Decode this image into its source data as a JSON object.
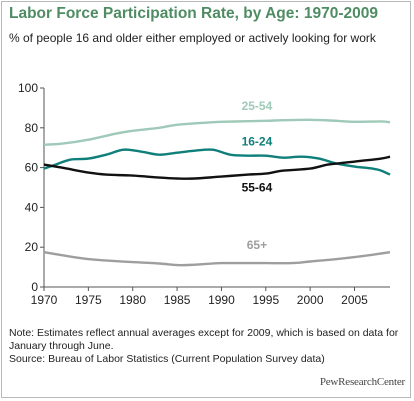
{
  "header": {
    "title": "Labor Force Participation Rate, by Age: 1970-2009",
    "subtitle": "% of people 16 and older either employed or actively looking for work"
  },
  "footer": {
    "note": "Note: Estimates reflect annual averages except for 2009, which is based on data for January through June.",
    "source": "Source: Bureau of Labor Statistics (Current Population Survey data)",
    "logo_text": "PewResearchCenter"
  },
  "chart_data": {
    "type": "line",
    "ylim": [
      0,
      100
    ],
    "xlim": [
      1970,
      2009
    ],
    "yticks": [
      0,
      20,
      40,
      60,
      80,
      100
    ],
    "xticks": [
      1970,
      1975,
      1980,
      1985,
      1990,
      1995,
      2000,
      2005
    ],
    "grid": false,
    "series": [
      {
        "name": "25-54",
        "color": "#9fc9b8",
        "x": [
          1970,
          1972,
          1975,
          1978,
          1980,
          1983,
          1985,
          1988,
          1990,
          1993,
          1995,
          1997,
          2000,
          2003,
          2005,
          2008,
          2009
        ],
        "y": [
          71.5,
          72,
          74,
          77,
          78.5,
          80,
          81.5,
          82.5,
          83,
          83.3,
          83.5,
          83.8,
          84,
          83.5,
          83,
          83.2,
          82.8
        ]
      },
      {
        "name": "16-24",
        "color": "#0f7f7a",
        "x": [
          1970,
          1971,
          1973,
          1975,
          1977,
          1979,
          1981,
          1983,
          1985,
          1987,
          1989,
          1991,
          1993,
          1995,
          1997,
          1999,
          2001,
          2003,
          2005,
          2007,
          2008,
          2009
        ],
        "y": [
          59.5,
          61,
          64,
          64.5,
          66.5,
          69,
          68,
          66.5,
          67.5,
          68.5,
          69,
          66.5,
          66,
          66,
          65,
          65.5,
          64.5,
          62,
          60.5,
          59.5,
          58.5,
          56.5
        ]
      },
      {
        "name": "55-64",
        "color": "#111111",
        "x": [
          1970,
          1972,
          1975,
          1977,
          1980,
          1983,
          1985,
          1987,
          1990,
          1993,
          1995,
          1997,
          2000,
          2002,
          2004,
          2006,
          2008,
          2009
        ],
        "y": [
          61.5,
          60,
          57.5,
          56.5,
          56,
          55,
          54.5,
          54.5,
          55.5,
          56.5,
          57,
          58.5,
          59.5,
          61.5,
          62.5,
          63.5,
          64.5,
          65.5
        ]
      },
      {
        "name": "65+",
        "color": "#9e9e9e",
        "x": [
          1970,
          1972,
          1975,
          1978,
          1980,
          1983,
          1985,
          1987,
          1990,
          1993,
          1995,
          1998,
          2000,
          2003,
          2005,
          2007,
          2009
        ],
        "y": [
          17.5,
          16,
          14,
          13,
          12.5,
          11.8,
          11,
          11.2,
          12,
          12,
          12,
          12,
          12.8,
          14,
          15,
          16.2,
          17.5
        ]
      }
    ],
    "labels": [
      {
        "series": "25-54",
        "text": "25-54",
        "x": 1994,
        "y": 89
      },
      {
        "series": "16-24",
        "text": "16-24",
        "x": 1994,
        "y": 71
      },
      {
        "series": "55-64",
        "text": "55-64",
        "x": 1994,
        "y": 48
      },
      {
        "series": "65+",
        "text": "65+",
        "x": 1994,
        "y": 19
      }
    ]
  }
}
